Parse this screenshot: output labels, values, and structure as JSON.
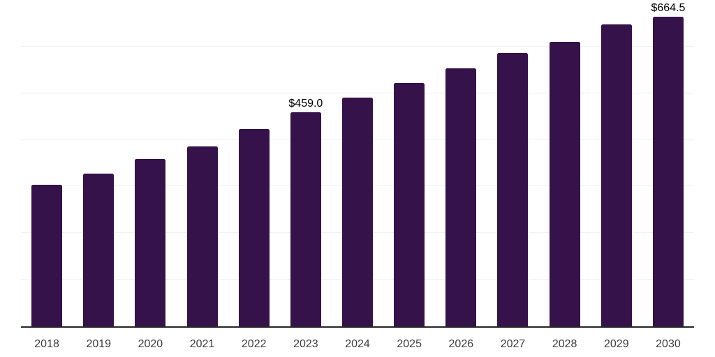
{
  "chart_data": {
    "type": "bar",
    "title": "",
    "xlabel": "",
    "ylabel": "",
    "categories": [
      "2018",
      "2019",
      "2020",
      "2021",
      "2022",
      "2023",
      "2024",
      "2025",
      "2026",
      "2027",
      "2028",
      "2029",
      "2030"
    ],
    "values": [
      303.5,
      327.0,
      359.5,
      386.0,
      423.0,
      459.0,
      490.0,
      522.5,
      553.5,
      587.0,
      611.0,
      647.0,
      664.5
    ],
    "point_labels": {
      "2023": "$459.0",
      "2030": "$664.5"
    },
    "currency_prefix": "$",
    "ylim": [
      0,
      700
    ],
    "gridline_values": [
      100,
      200,
      300,
      400,
      500,
      600,
      700
    ],
    "grid": true,
    "legend": "none",
    "colors": {
      "bar": "#351249",
      "axis_line": "#262626",
      "gridline": "#f2f2f4",
      "tick_label": "#3d3d3d",
      "value_label": "#000000",
      "background": "#ffffff"
    }
  }
}
